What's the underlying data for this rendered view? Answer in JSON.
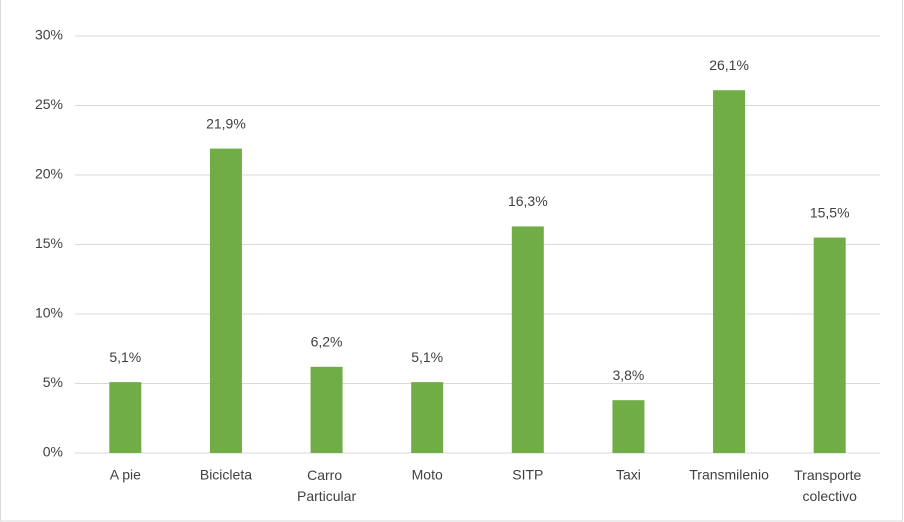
{
  "chart_data": {
    "type": "bar",
    "categories": [
      "A pie",
      "Bicicleta",
      "Carro Particular",
      "Moto",
      "SITP",
      "Taxi",
      "Transmilenio",
      "Transporte colectivo"
    ],
    "values": [
      5.1,
      21.9,
      6.2,
      5.1,
      16.3,
      3.8,
      26.1,
      15.5
    ],
    "value_labels": [
      "5,1%",
      "21,9%",
      "6,2%",
      "5,1%",
      "16,3%",
      "3,8%",
      "26,1%",
      "15,5%"
    ],
    "color": "#70ad47",
    "ylim": [
      0,
      30
    ],
    "yticks": [
      {
        "value": 0,
        "label": "0%"
      },
      {
        "value": 5,
        "label": "5%"
      },
      {
        "value": 10,
        "label": "10%"
      },
      {
        "value": 15,
        "label": "15%"
      },
      {
        "value": 20,
        "label": "20%"
      },
      {
        "value": 25,
        "label": "25%"
      },
      {
        "value": 30,
        "label": "30%"
      }
    ],
    "grid": true
  }
}
